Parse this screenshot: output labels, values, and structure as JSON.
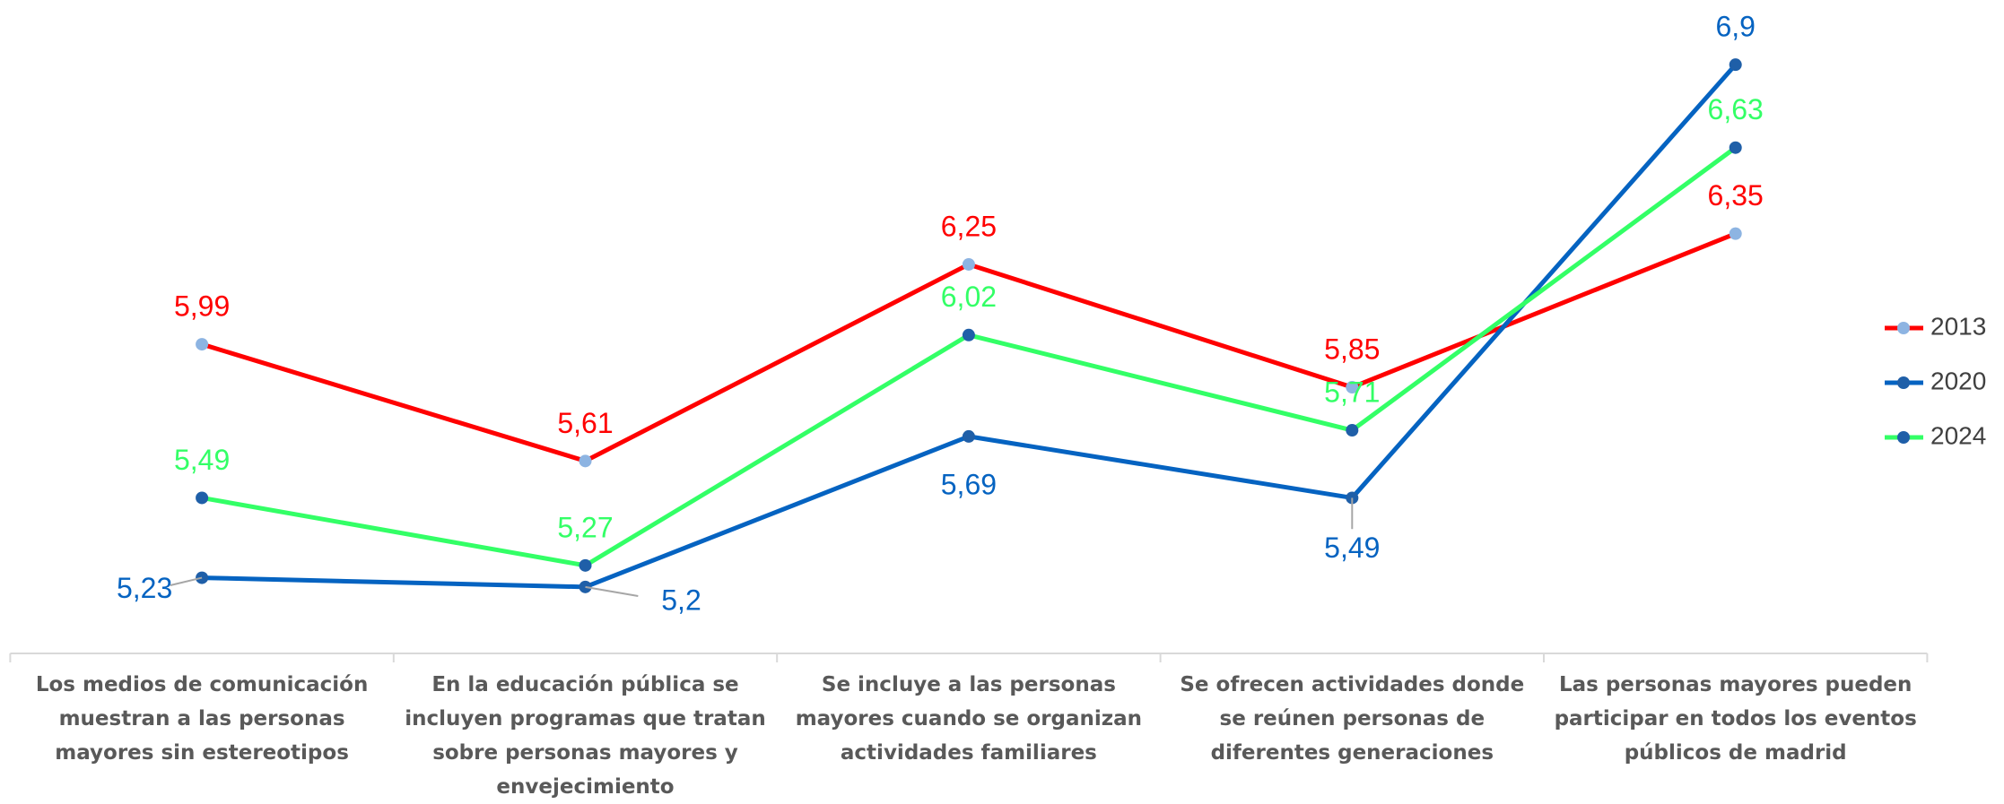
{
  "chart_data": {
    "type": "line",
    "categories": [
      "Los medios de comunicación muestran a las personas mayores sin estereotipos",
      "En la educación pública se incluyen programas que tratan sobre personas mayores y envejecimiento",
      "Se incluye a las personas mayores cuando se organizan actividades familiares",
      "Se ofrecen actividades donde se reúnen personas de diferentes generaciones",
      "Las personas mayores pueden participar en todos los eventos públicos de madrid"
    ],
    "series": [
      {
        "name": "2013",
        "color": "#ff0000",
        "marker_color": "#8db4e2",
        "values": [
          5.99,
          5.61,
          6.25,
          5.85,
          6.35
        ],
        "value_labels": [
          "5,99",
          "5,61",
          "6,25",
          "5,85",
          "6,35"
        ]
      },
      {
        "name": "2020",
        "color": "#0563c1",
        "marker_color": "#1f5fa8",
        "values": [
          5.23,
          5.2,
          5.69,
          5.49,
          6.9
        ],
        "value_labels": [
          "5,23",
          "5,2",
          "5,69",
          "5,49",
          "6,9"
        ]
      },
      {
        "name": "2024",
        "color": "#33ff66",
        "marker_color": "#1f5fa8",
        "values": [
          5.49,
          5.27,
          6.02,
          5.71,
          6.63
        ],
        "value_labels": [
          "5,49",
          "5,27",
          "6,02",
          "5,71",
          "6,63"
        ]
      }
    ],
    "ylim": [
      5,
      7.1
    ],
    "legend": "right"
  }
}
